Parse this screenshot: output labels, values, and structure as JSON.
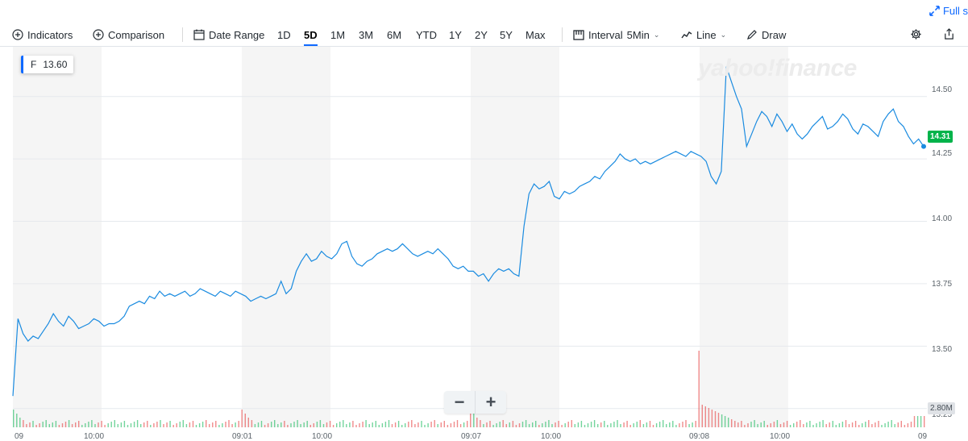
{
  "header": {
    "fullscreen_label": "Full s"
  },
  "toolbar": {
    "indicators": "Indicators",
    "comparison": "Comparison",
    "date_range": "Date Range",
    "ranges": [
      "1D",
      "5D",
      "1M",
      "3M",
      "6M",
      "YTD",
      "1Y",
      "2Y",
      "5Y",
      "Max"
    ],
    "active_range": "5D",
    "interval_label": "Interval",
    "interval_value": "5Min",
    "line_label": "Line",
    "draw_label": "Draw"
  },
  "legend": {
    "symbol": "F",
    "value": "13.60"
  },
  "watermark": "yahoo!finance",
  "last_price": "14.31",
  "volume_label": "2.80M",
  "colors": {
    "line": "#1a8be0",
    "accent": "#0f69ff",
    "up": "#00b34a",
    "down": "#e32c2c",
    "band": "#f5f5f5"
  },
  "chart_data": {
    "type": "line",
    "symbol": "F",
    "yticks": [
      "14.50",
      "14.25",
      "14.00",
      "13.75",
      "13.50",
      "13.25"
    ],
    "ylim": [
      13.22,
      14.68
    ],
    "series": [
      {
        "name": "F",
        "values": [
          13.3,
          13.61,
          13.55,
          13.52,
          13.54,
          13.53,
          13.56,
          13.59,
          13.63,
          13.6,
          13.58,
          13.62,
          13.6,
          13.57,
          13.58,
          13.59,
          13.61,
          13.6,
          13.58,
          13.59,
          13.59,
          13.6,
          13.62,
          13.66,
          13.67,
          13.68,
          13.67,
          13.7,
          13.69,
          13.72,
          13.7,
          13.71,
          13.7,
          13.71,
          13.72,
          13.7,
          13.71,
          13.73,
          13.72,
          13.71,
          13.7,
          13.72,
          13.71,
          13.7,
          13.72,
          13.71,
          13.7,
          13.68,
          13.69,
          13.7,
          13.69,
          13.7,
          13.71,
          13.76,
          13.71,
          13.73,
          13.8,
          13.84,
          13.87,
          13.84,
          13.85,
          13.88,
          13.86,
          13.85,
          13.87,
          13.91,
          13.92,
          13.86,
          13.83,
          13.82,
          13.84,
          13.85,
          13.87,
          13.88,
          13.89,
          13.88,
          13.89,
          13.91,
          13.89,
          13.87,
          13.86,
          13.87,
          13.88,
          13.87,
          13.89,
          13.87,
          13.85,
          13.82,
          13.81,
          13.82,
          13.8,
          13.8,
          13.78,
          13.79,
          13.76,
          13.79,
          13.81,
          13.8,
          13.81,
          13.79,
          13.78,
          13.98,
          14.11,
          14.15,
          14.13,
          14.14,
          14.16,
          14.1,
          14.09,
          14.12,
          14.11,
          14.12,
          14.14,
          14.15,
          14.16,
          14.18,
          14.17,
          14.2,
          14.22,
          14.24,
          14.27,
          14.25,
          14.24,
          14.25,
          14.23,
          14.24,
          14.23,
          14.24,
          14.25,
          14.26,
          14.27,
          14.28,
          14.27,
          14.26,
          14.28,
          14.27,
          14.26,
          14.24,
          14.18,
          14.15,
          14.2,
          14.62,
          14.56,
          14.5,
          14.45,
          14.3,
          14.35,
          14.4,
          14.44,
          14.42,
          14.38,
          14.43,
          14.4,
          14.36,
          14.39,
          14.35,
          14.33,
          14.35,
          14.38,
          14.4,
          14.42,
          14.37,
          14.38,
          14.4,
          14.43,
          14.41,
          14.37,
          14.35,
          14.39,
          14.38,
          14.36,
          14.34,
          14.4,
          14.43,
          14.45,
          14.4,
          14.38,
          14.34,
          14.31,
          14.33,
          14.3
        ]
      }
    ],
    "x_tick_labels": [
      "09",
      "10:00",
      "09:01",
      "10:00",
      "09:07",
      "10:00",
      "09:08",
      "10:00",
      "09"
    ],
    "volume_max_label": "2.80M",
    "grid": true,
    "legend_position": "top-left"
  }
}
